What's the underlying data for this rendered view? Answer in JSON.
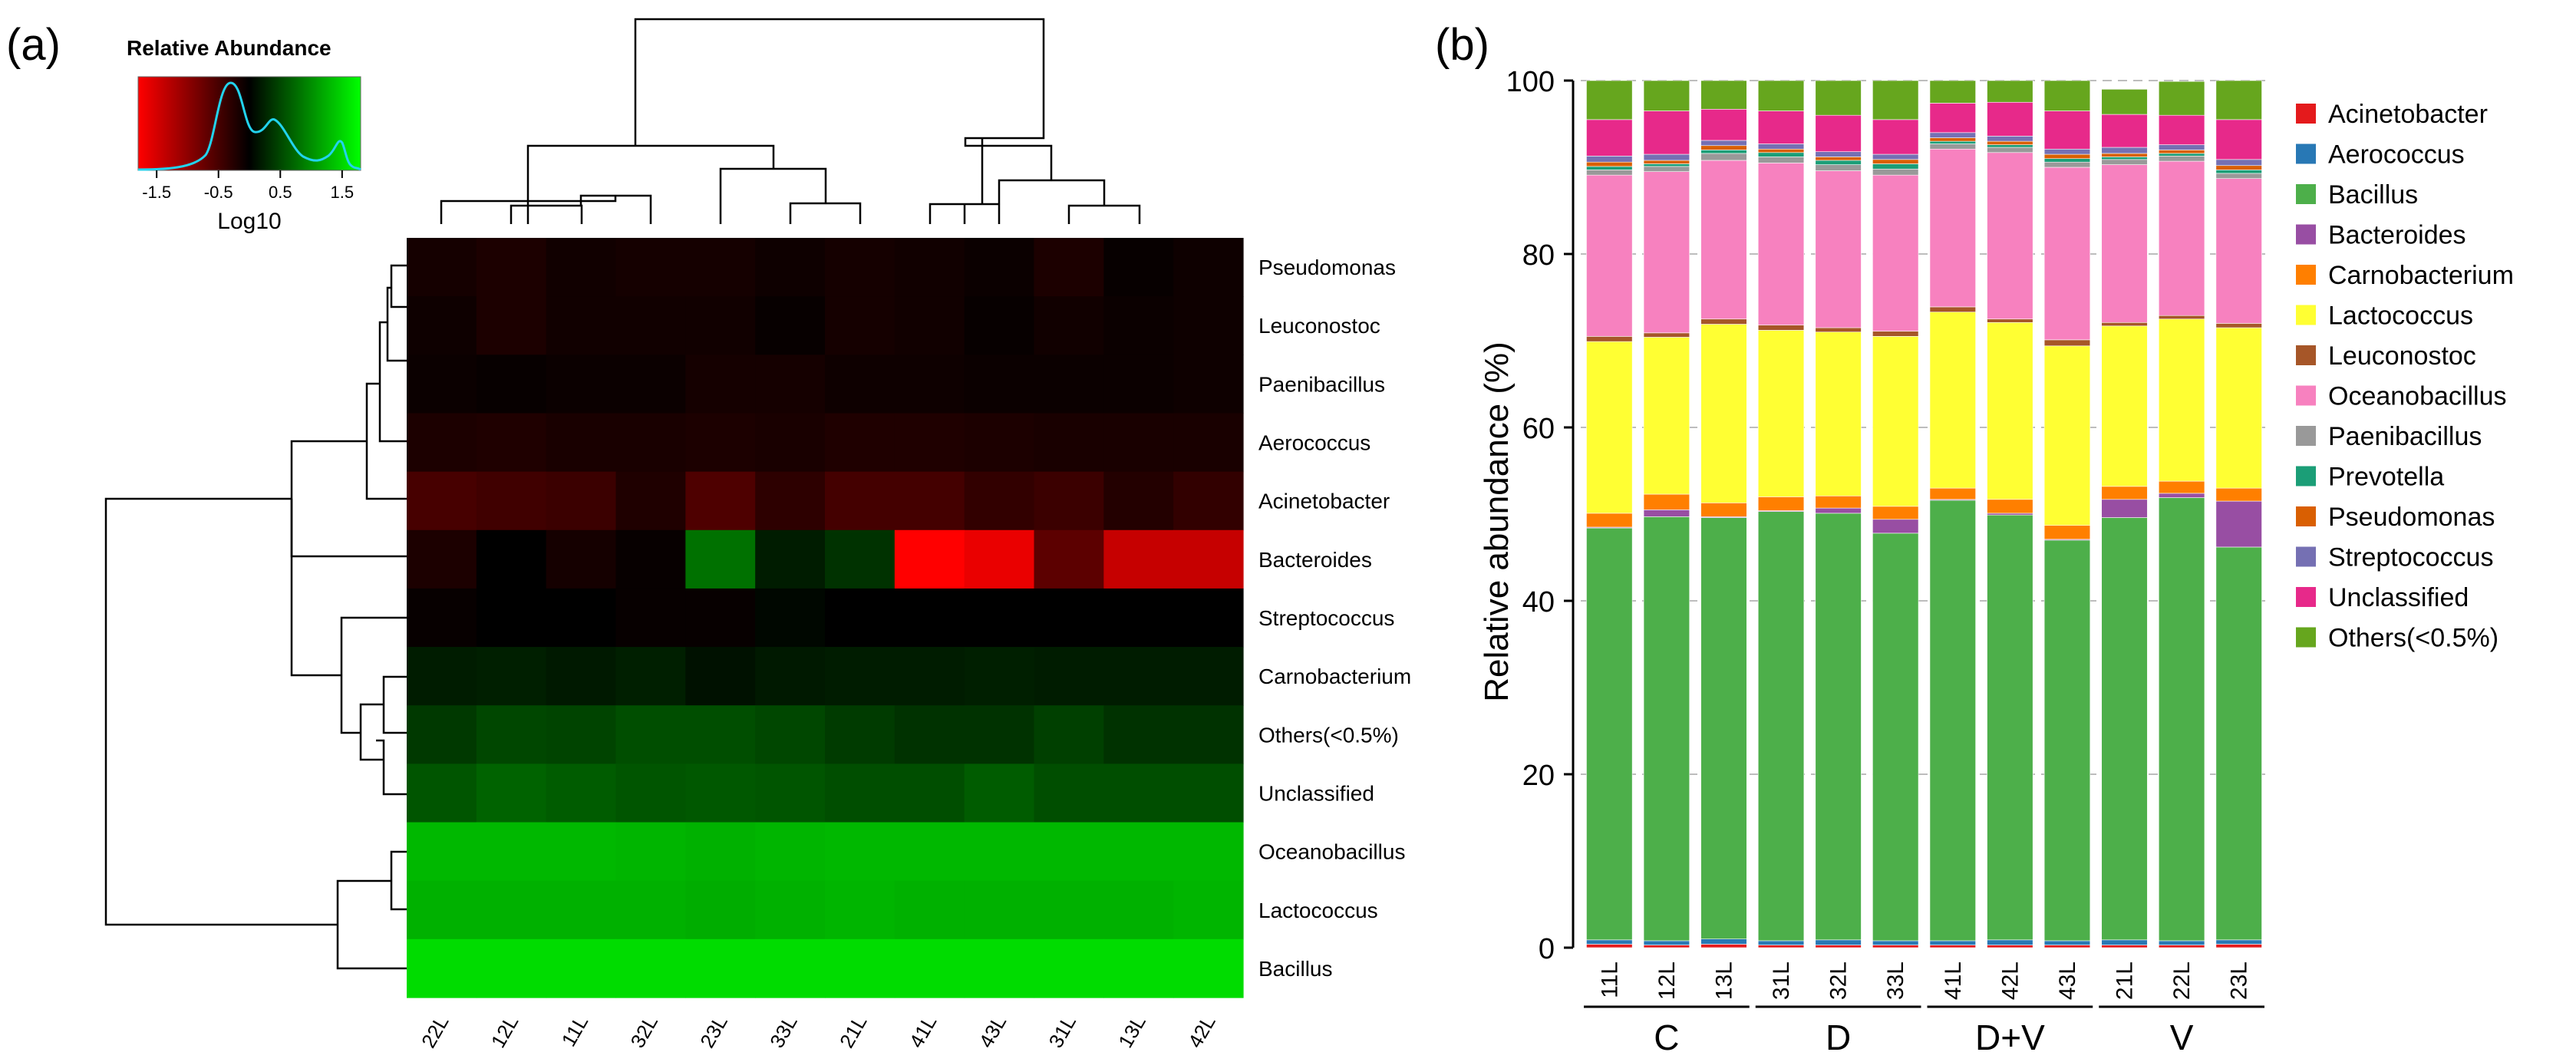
{
  "panel_a": {
    "label": "(a)",
    "legend_title": "Relative Abundance",
    "legend_axis_label": "Log10",
    "legend_ticks": [
      "-1.5",
      "-0.5",
      "0.5",
      "1.5"
    ],
    "colors": {
      "low": "#ff0000",
      "mid": "#000000",
      "high": "#00ff00",
      "density_line": "#22d3ee"
    }
  },
  "panel_b": {
    "label": "(b)"
  },
  "chart_data": [
    {
      "type": "heatmap",
      "title": "",
      "color_scale_label": "Log10",
      "color_range": [
        -1.8,
        1.8
      ],
      "columns": [
        "22L",
        "12L",
        "11L",
        "32L",
        "23L",
        "33L",
        "21L",
        "41L",
        "43L",
        "31L",
        "13L",
        "42L"
      ],
      "rows": [
        "Pseudomonas",
        "Leuconostoc",
        "Paenibacillus",
        "Aerococcus",
        "Acinetobacter",
        "Bacteroides",
        "Streptococcus",
        "Carnobacterium",
        "Others(<0.5%)",
        "Unclassified",
        "Oceanobacillus",
        "Lactococcus",
        "Bacillus"
      ],
      "values": [
        [
          -0.15,
          -0.2,
          -0.12,
          -0.15,
          -0.15,
          -0.1,
          -0.15,
          -0.12,
          -0.08,
          -0.2,
          -0.05,
          -0.1
        ],
        [
          -0.1,
          -0.2,
          -0.12,
          -0.12,
          -0.12,
          -0.05,
          -0.15,
          -0.12,
          -0.05,
          -0.12,
          -0.08,
          -0.1
        ],
        [
          -0.08,
          -0.05,
          -0.08,
          -0.08,
          -0.15,
          -0.15,
          -0.1,
          -0.1,
          -0.08,
          -0.08,
          -0.08,
          -0.1
        ],
        [
          -0.2,
          -0.22,
          -0.18,
          -0.18,
          -0.2,
          -0.18,
          -0.22,
          -0.22,
          -0.2,
          -0.18,
          -0.18,
          -0.18
        ],
        [
          -0.5,
          -0.45,
          -0.42,
          -0.22,
          -0.55,
          -0.32,
          -0.48,
          -0.48,
          -0.35,
          -0.42,
          -0.25,
          -0.35
        ],
        [
          -0.2,
          0.0,
          -0.15,
          -0.05,
          0.8,
          0.2,
          0.35,
          -1.8,
          -1.65,
          -0.65,
          -1.4,
          -1.4
        ],
        [
          -0.05,
          0.0,
          0.0,
          -0.05,
          -0.05,
          0.05,
          0.0,
          0.0,
          0.0,
          0.0,
          0.0,
          0.0
        ],
        [
          0.2,
          0.22,
          0.18,
          0.22,
          0.12,
          0.18,
          0.2,
          0.2,
          0.22,
          0.2,
          0.2,
          0.2
        ],
        [
          0.4,
          0.5,
          0.48,
          0.55,
          0.55,
          0.5,
          0.42,
          0.35,
          0.35,
          0.45,
          0.35,
          0.35
        ],
        [
          0.6,
          0.7,
          0.65,
          0.6,
          0.62,
          0.6,
          0.55,
          0.55,
          0.65,
          0.55,
          0.55,
          0.55
        ],
        [
          1.3,
          1.3,
          1.3,
          1.28,
          1.25,
          1.28,
          1.3,
          1.3,
          1.3,
          1.3,
          1.3,
          1.3
        ],
        [
          1.25,
          1.25,
          1.25,
          1.25,
          1.22,
          1.25,
          1.28,
          1.25,
          1.25,
          1.25,
          1.25,
          1.28
        ],
        [
          1.55,
          1.55,
          1.55,
          1.55,
          1.55,
          1.55,
          1.55,
          1.55,
          1.55,
          1.55,
          1.55,
          1.55
        ]
      ]
    },
    {
      "type": "bar",
      "stacked": true,
      "title": "",
      "xlabel": "",
      "ylabel": "Relative abundance (%)",
      "ylim": [
        0,
        100
      ],
      "yticks": [
        0,
        20,
        40,
        60,
        80,
        100
      ],
      "grid": true,
      "legend_position": "right",
      "categories": [
        "11L",
        "12L",
        "13L",
        "31L",
        "32L",
        "33L",
        "41L",
        "42L",
        "43L",
        "21L",
        "22L",
        "23L"
      ],
      "groups": [
        {
          "name": "C",
          "members": [
            "11L",
            "12L",
            "13L"
          ]
        },
        {
          "name": "D",
          "members": [
            "31L",
            "32L",
            "33L"
          ]
        },
        {
          "name": "D+V",
          "members": [
            "41L",
            "42L",
            "43L"
          ]
        },
        {
          "name": "V",
          "members": [
            "21L",
            "22L",
            "23L"
          ]
        }
      ],
      "series": [
        {
          "name": "Acinetobacter",
          "color": "#e41a1c",
          "values": [
            0.4,
            0.3,
            0.4,
            0.3,
            0.3,
            0.3,
            0.3,
            0.3,
            0.3,
            0.3,
            0.3,
            0.4
          ]
        },
        {
          "name": "Aerococcus",
          "color": "#2878b5",
          "values": [
            0.5,
            0.5,
            0.6,
            0.5,
            0.6,
            0.5,
            0.5,
            0.6,
            0.5,
            0.6,
            0.5,
            0.5
          ]
        },
        {
          "name": "Bacillus",
          "color": "#4daf4a",
          "values": [
            47.5,
            48.9,
            48.6,
            49.5,
            49.2,
            47.0,
            50.8,
            49.0,
            46.2,
            48.7,
            51.1,
            45.3
          ]
        },
        {
          "name": "Bacteroides",
          "color": "#984ea3",
          "values": [
            0.1,
            0.8,
            0.1,
            0.1,
            0.6,
            1.6,
            0.1,
            0.2,
            0.1,
            2.1,
            0.5,
            5.3
          ]
        },
        {
          "name": "Carnobacterium",
          "color": "#ff7f00",
          "values": [
            1.6,
            1.8,
            1.6,
            1.6,
            1.4,
            1.5,
            1.3,
            1.6,
            1.6,
            1.5,
            1.4,
            1.5
          ]
        },
        {
          "name": "Lactococcus",
          "color": "#ffff33",
          "values": [
            19.8,
            18.1,
            20.6,
            19.2,
            18.9,
            19.6,
            20.3,
            20.4,
            20.7,
            18.5,
            18.7,
            18.5
          ]
        },
        {
          "name": "Leuconostoc",
          "color": "#a65628",
          "values": [
            0.6,
            0.5,
            0.6,
            0.6,
            0.5,
            0.6,
            0.6,
            0.4,
            0.7,
            0.4,
            0.4,
            0.5
          ]
        },
        {
          "name": "Oceanobacillus",
          "color": "#f781bf",
          "values": [
            18.6,
            18.6,
            18.3,
            18.7,
            18.1,
            18.0,
            18.2,
            19.2,
            19.9,
            18.2,
            17.8,
            16.7
          ]
        },
        {
          "name": "Paenibacillus",
          "color": "#999999",
          "values": [
            0.6,
            0.6,
            0.8,
            0.7,
            0.7,
            0.7,
            0.6,
            0.6,
            0.6,
            0.6,
            0.6,
            0.6
          ]
        },
        {
          "name": "Prevotella",
          "color": "#1b9e77",
          "values": [
            0.4,
            0.3,
            0.4,
            0.5,
            0.5,
            0.6,
            0.3,
            0.3,
            0.4,
            0.3,
            0.3,
            0.4
          ]
        },
        {
          "name": "Pseudomonas",
          "color": "#d95f02",
          "values": [
            0.5,
            0.4,
            0.5,
            0.4,
            0.4,
            0.5,
            0.4,
            0.4,
            0.5,
            0.4,
            0.4,
            0.5
          ]
        },
        {
          "name": "Streptococcus",
          "color": "#7570b3",
          "values": [
            0.7,
            0.7,
            0.6,
            0.6,
            0.6,
            0.6,
            0.6,
            0.6,
            0.6,
            0.7,
            0.6,
            0.7
          ]
        },
        {
          "name": "Unclassified",
          "color": "#e7298a",
          "values": [
            4.2,
            5.0,
            3.6,
            3.8,
            4.2,
            4.0,
            3.4,
            3.9,
            4.4,
            3.8,
            3.4,
            4.6
          ]
        },
        {
          "name": "Others(<0.5%)",
          "color": "#66a61e",
          "values": [
            4.5,
            3.5,
            3.3,
            3.5,
            4.0,
            4.5,
            2.6,
            2.5,
            3.5,
            2.9,
            3.9,
            4.5
          ]
        }
      ]
    }
  ]
}
